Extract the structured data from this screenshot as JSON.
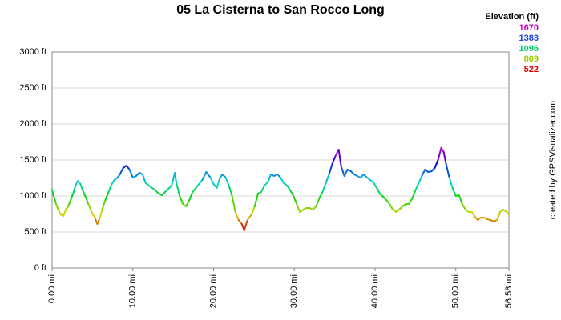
{
  "chart_data": {
    "type": "line",
    "title": "05 La Cisterna to San Rocco Long",
    "legend_title": "Elevation (ft)",
    "legend": [
      {
        "value": 1670,
        "color": "#cc00cc"
      },
      {
        "value": 1383,
        "color": "#1a40e0"
      },
      {
        "value": 1096,
        "color": "#00cc66"
      },
      {
        "value": 809,
        "color": "#99cc00"
      },
      {
        "value": 522,
        "color": "#dd0000"
      }
    ],
    "credit": "created by GPSVisualizer.com",
    "xlim": [
      0,
      56.58
    ],
    "ylim": [
      0,
      3000
    ],
    "xticks": [
      {
        "value": 0,
        "label": "0.00 mi"
      },
      {
        "value": 10,
        "label": "10.00 mi"
      },
      {
        "value": 20,
        "label": "20.00 mi"
      },
      {
        "value": 30,
        "label": "30.00 mi"
      },
      {
        "value": 40,
        "label": "40.00 mi"
      },
      {
        "value": 50,
        "label": "50.00 mi"
      },
      {
        "value": 56.58,
        "label": "56.58 mi"
      }
    ],
    "yticks": [
      {
        "value": 0,
        "label": "0 ft"
      },
      {
        "value": 500,
        "label": "500 ft"
      },
      {
        "value": 1000,
        "label": "1000 ft"
      },
      {
        "value": 1500,
        "label": "1500 ft"
      },
      {
        "value": 2000,
        "label": "2000 ft"
      },
      {
        "value": 2500,
        "label": "2500 ft"
      },
      {
        "value": 3000,
        "label": "3000 ft"
      }
    ],
    "grid": true,
    "x": [
      0.0,
      0.2,
      0.5,
      0.8,
      1.1,
      1.4,
      1.7,
      2.0,
      2.3,
      2.6,
      2.9,
      3.2,
      3.5,
      3.8,
      4.1,
      4.5,
      4.9,
      5.3,
      5.6,
      5.9,
      6.2,
      6.6,
      7.0,
      7.3,
      7.7,
      8.1,
      8.4,
      8.8,
      9.2,
      9.6,
      10.0,
      10.4,
      10.8,
      11.2,
      11.6,
      12.0,
      12.4,
      12.8,
      13.2,
      13.6,
      14.0,
      14.4,
      14.8,
      15.2,
      15.4,
      15.8,
      16.2,
      16.6,
      17.0,
      17.4,
      17.8,
      18.2,
      18.6,
      19.1,
      19.6,
      20.0,
      20.4,
      20.8,
      21.1,
      21.5,
      21.9,
      22.3,
      22.7,
      23.1,
      23.5,
      23.8,
      24.2,
      24.7,
      25.1,
      25.5,
      25.9,
      26.3,
      26.7,
      27.1,
      27.5,
      27.9,
      28.3,
      28.7,
      29.1,
      29.5,
      29.9,
      30.3,
      30.7,
      31.1,
      31.5,
      31.9,
      32.3,
      32.7,
      33.1,
      33.5,
      33.9,
      34.3,
      34.7,
      35.1,
      35.5,
      35.8,
      36.2,
      36.6,
      37.0,
      37.4,
      37.8,
      38.2,
      38.6,
      39.0,
      39.4,
      39.8,
      40.2,
      40.6,
      41.0,
      41.4,
      41.8,
      42.2,
      42.6,
      43.0,
      43.4,
      43.8,
      44.2,
      44.6,
      45.0,
      45.4,
      45.8,
      46.2,
      46.6,
      47.0,
      47.4,
      47.8,
      48.2,
      48.5,
      48.8,
      49.2,
      49.6,
      50.0,
      50.4,
      50.8,
      51.2,
      51.6,
      52.0,
      52.3,
      52.7,
      53.1,
      53.5,
      53.9,
      54.3,
      54.7,
      55.1,
      55.5,
      55.9,
      56.3,
      56.58
    ],
    "series": [
      {
        "name": "Elevation",
        "values": [
          1089,
          1000,
          889,
          800,
          744,
          722,
          811,
          856,
          944,
          1033,
          1144,
          1211,
          1167,
          1078,
          1000,
          889,
          778,
          700,
          611,
          689,
          811,
          944,
          1056,
          1144,
          1222,
          1256,
          1300,
          1389,
          1422,
          1367,
          1256,
          1278,
          1322,
          1300,
          1178,
          1144,
          1111,
          1078,
          1033,
          1011,
          1056,
          1100,
          1144,
          1322,
          1178,
          1000,
          889,
          856,
          944,
          1056,
          1111,
          1167,
          1222,
          1333,
          1256,
          1167,
          1111,
          1256,
          1300,
          1256,
          1144,
          1000,
          778,
          667,
          611,
          522,
          667,
          744,
          856,
          1033,
          1056,
          1144,
          1189,
          1300,
          1278,
          1300,
          1256,
          1178,
          1144,
          1078,
          1000,
          889,
          778,
          811,
          833,
          833,
          811,
          856,
          967,
          1056,
          1178,
          1300,
          1444,
          1556,
          1644,
          1411,
          1278,
          1367,
          1344,
          1300,
          1278,
          1256,
          1300,
          1256,
          1222,
          1189,
          1111,
          1033,
          989,
          944,
          889,
          811,
          778,
          811,
          856,
          889,
          889,
          967,
          1078,
          1178,
          1278,
          1367,
          1333,
          1344,
          1389,
          1500,
          1670,
          1611,
          1444,
          1256,
          1111,
          1000,
          1011,
          889,
          811,
          778,
          778,
          722,
          667,
          700,
          700,
          678,
          667,
          644,
          667,
          778,
          811,
          778,
          744
        ]
      }
    ]
  }
}
